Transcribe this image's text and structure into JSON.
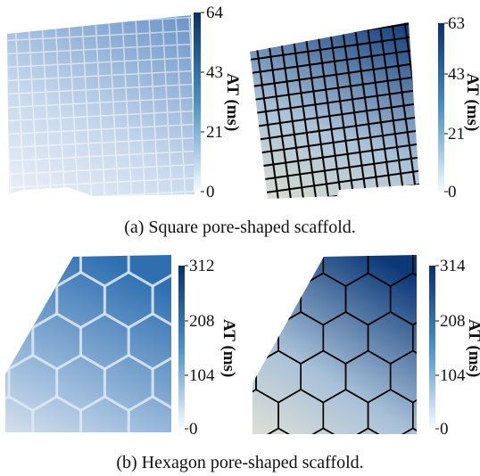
{
  "figure": {
    "row_a": {
      "caption": "(a) Square pore-shaped scaffold.",
      "left_colorbar": {
        "label": "AT (ms)",
        "ticks": [
          "64",
          "43",
          "21",
          "0"
        ]
      },
      "right_colorbar": {
        "label": "AT (ms)",
        "ticks": [
          "63",
          "43",
          "21",
          "0"
        ]
      }
    },
    "row_b": {
      "caption": "(b) Hexagon pore-shaped scaffold.",
      "left_colorbar": {
        "label": "AT (ms)",
        "ticks": [
          "312",
          "208",
          "104",
          "0"
        ]
      },
      "right_colorbar": {
        "label": "AT (ms)",
        "ticks": [
          "314",
          "208",
          "104",
          "0"
        ]
      }
    }
  },
  "colors": {
    "colormap_high": "#08306b",
    "colormap_mid": "#4a90c8",
    "colormap_low": "#f7fbff",
    "grid_lines": "#000000"
  }
}
